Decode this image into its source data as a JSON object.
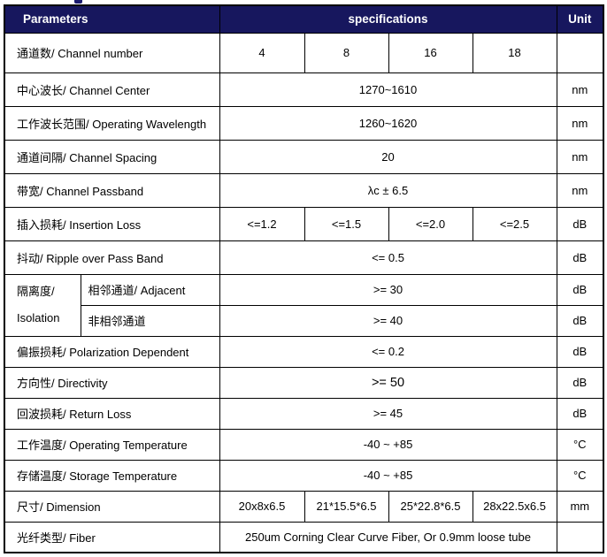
{
  "colors": {
    "header_bg": "#17175e",
    "header_text": "#ffffff",
    "border": "#000000",
    "body_text": "#000000"
  },
  "table": {
    "header": {
      "parameters": "Parameters",
      "specifications": "specifications",
      "unit": "Unit"
    },
    "rows": [
      {
        "param": "通道数/ Channel number",
        "values": [
          "4",
          "8",
          "16",
          "18"
        ],
        "unit": ""
      },
      {
        "param": "中心波长/ Channel Center",
        "value": "1270~1610",
        "unit": "nm"
      },
      {
        "param": "工作波长范围/ Operating Wavelength",
        "value": "1260~1620",
        "unit": "nm"
      },
      {
        "param": "通道间隔/ Channel Spacing",
        "value": "20",
        "unit": "nm"
      },
      {
        "param": "带宽/ Channel Passband",
        "value": "λc ± 6.5",
        "unit": "nm"
      },
      {
        "param": "插入损耗/ Insertion Loss",
        "values": [
          "<=1.2",
          "<=1.5",
          "<=2.0",
          "<=2.5"
        ],
        "unit": "dB"
      },
      {
        "param": "抖动/ Ripple over Pass Band",
        "value": "<= 0.5",
        "unit": "dB"
      },
      {
        "group_line1": "隔离度/",
        "group_line2": "Isolation",
        "param": "相邻通道/ Adjacent",
        "value": ">= 30",
        "unit": "dB"
      },
      {
        "param": "非相邻通道",
        "value": ">= 40",
        "unit": "dB"
      },
      {
        "param": "偏振损耗/ Polarization Dependent",
        "value": "<= 0.2",
        "unit": "dB"
      },
      {
        "param": "方向性/ Directivity",
        "value": ">= 50",
        "unit": "dB"
      },
      {
        "param": "回波损耗/ Return Loss",
        "value": ">= 45",
        "unit": "dB"
      },
      {
        "param": "工作温度/ Operating Temperature",
        "value": "-40 ~ +85",
        "unit": "°C"
      },
      {
        "param": "存储温度/ Storage Temperature",
        "value": "-40 ~ +85",
        "unit": "°C"
      },
      {
        "param": "尺寸/ Dimension",
        "values": [
          "20x8x6.5",
          "21*15.5*6.5",
          "25*22.8*6.5",
          "28x22.5x6.5"
        ],
        "unit": "mm"
      },
      {
        "param": "光纤类型/ Fiber",
        "value": "250um Corning Clear Curve Fiber, Or 0.9mm loose tube",
        "unit": ""
      }
    ]
  }
}
